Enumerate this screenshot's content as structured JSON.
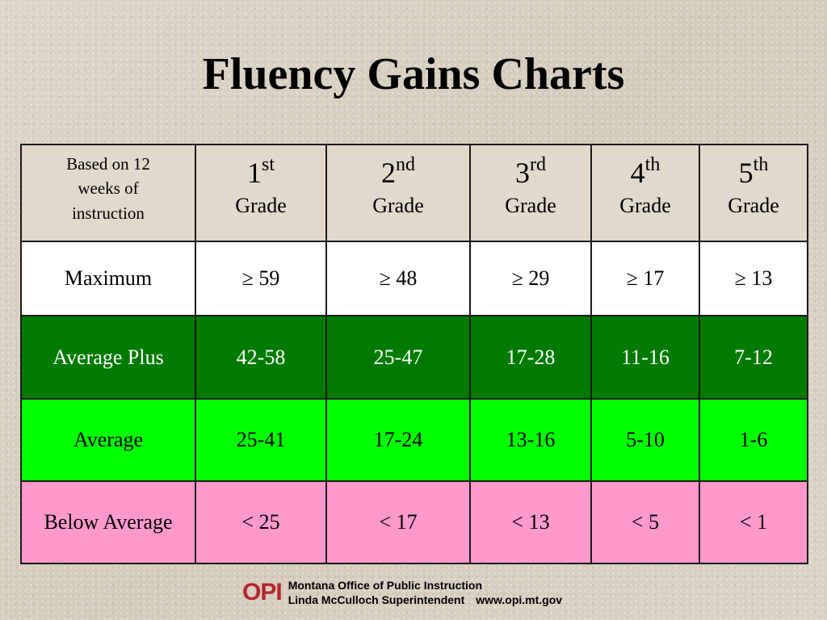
{
  "title": "Fluency Gains Charts",
  "table": {
    "corner": [
      "Based on 12",
      "weeks of",
      "instruction"
    ],
    "grades": [
      {
        "num": "1",
        "suffix": "st",
        "word": "Grade"
      },
      {
        "num": "2",
        "suffix": "nd",
        "word": "Grade"
      },
      {
        "num": "3",
        "suffix": "rd",
        "word": "Grade"
      },
      {
        "num": "4",
        "suffix": "th",
        "word": "Grade"
      },
      {
        "num": "5",
        "suffix": "th",
        "word": "Grade"
      }
    ],
    "rows": [
      {
        "label": "Maximum",
        "color": "#ffffff",
        "values": [
          "≥ 59",
          "≥ 48",
          "≥ 29",
          "≥ 17",
          "≥ 13"
        ]
      },
      {
        "label": "Average Plus",
        "color": "#007a00",
        "values": [
          "42-58",
          "25-47",
          "17-28",
          "11-16",
          "7-12"
        ]
      },
      {
        "label": "Average",
        "color": "#00ff00",
        "values": [
          "25-41",
          "17-24",
          "13-16",
          "5-10",
          "1-6"
        ]
      },
      {
        "label": "Below Average",
        "color": "#ff99cc",
        "values": [
          "< 25",
          "< 17",
          "< 13",
          "< 5",
          "< 1"
        ]
      }
    ]
  },
  "footer": {
    "logo_text": "OPI",
    "line1": "Montana Office of Public Instruction",
    "line2_name": "Linda McCulloch Superintendent",
    "line2_url": "www.opi.mt.gov"
  }
}
